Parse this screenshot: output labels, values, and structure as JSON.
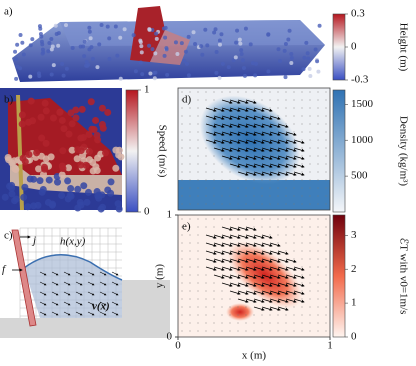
{
  "figure": {
    "panel_a": {
      "label": "a)",
      "colorbar": {
        "title": "Height (m)",
        "lim": [
          -0.3,
          0.3
        ],
        "ticks": [
          -0.3,
          0,
          0.3
        ],
        "colors": [
          "#3a4fc2",
          "#f2f2f2",
          "#b5171f"
        ]
      }
    },
    "panel_b": {
      "label": "b)",
      "colorbar": {
        "title": "Speed (m/s)",
        "lim": [
          0,
          1
        ],
        "ticks": [
          0,
          1
        ],
        "colors": [
          "#3a4fc2",
          "#f2f2f2",
          "#b5171f"
        ]
      }
    },
    "panel_c": {
      "label": "c)",
      "annotations": [
        "j",
        "f",
        "h(x,y)",
        "v(x)"
      ]
    },
    "panel_d": {
      "label": "d)",
      "colorbar": {
        "title": "Density (kg/m³)",
        "lim": [
          0,
          1700
        ],
        "ticks": [
          500,
          1000,
          1500
        ],
        "colors": [
          "#f4f6f9",
          "#2f72b3"
        ]
      }
    },
    "panel_e": {
      "label": "e)",
      "colorbar": {
        "title": "ℰT with v0=1m/s",
        "lim": [
          0,
          3.6
        ],
        "ticks": [
          0,
          1,
          2,
          3
        ],
        "colors": [
          "#fff5f0",
          "#f26a4b",
          "#70020d"
        ]
      },
      "xlabel": "x (m)",
      "ylabel": "y (m)",
      "xlim": [
        0,
        1
      ],
      "ylim": [
        0,
        1
      ],
      "xticks": [
        0,
        1
      ],
      "yticks": [
        0,
        1
      ]
    }
  }
}
